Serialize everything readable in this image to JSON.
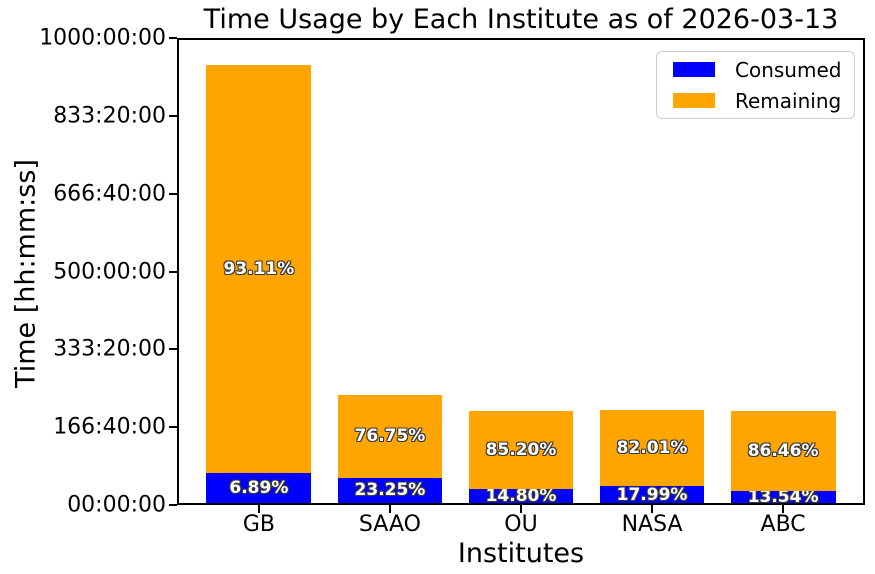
{
  "title": "Time Usage by Each Institute as of 2026-03-13",
  "chart_data": {
    "type": "bar",
    "stacked": true,
    "title": "Time Usage by Each Institute as of 2026-03-13",
    "xlabel": "Institutes",
    "ylabel": "Time [hh:mm:ss]",
    "categories": [
      "GB",
      "SAAO",
      "OU",
      "NASA",
      "ABC"
    ],
    "series": [
      {
        "name": "Consumed",
        "color": "#0000ff",
        "values_hours": [
          64.6,
          53.8,
          29.2,
          35.8,
          26.7
        ],
        "labels": [
          "6.89%",
          "23.25%",
          "14.80%",
          "17.99%",
          "13.54%"
        ]
      },
      {
        "name": "Remaining",
        "color": "#ffa500",
        "values_hours": [
          873.6,
          177.5,
          167.8,
          163.3,
          170.4
        ],
        "labels": [
          "93.11%",
          "76.75%",
          "85.20%",
          "82.01%",
          "86.46%"
        ]
      }
    ],
    "totals_hours": [
      938.2,
      231.3,
      197.0,
      199.1,
      197.1
    ],
    "ylim": [
      0,
      1000
    ],
    "ytick_labels": [
      "00:00:00",
      "166:40:00",
      "333:20:00",
      "500:00:00",
      "666:40:00",
      "833:20:00",
      "1000:00:00"
    ],
    "ytick_hours": [
      0,
      166.6667,
      333.3333,
      500,
      666.6667,
      833.3333,
      1000
    ],
    "grid": false,
    "legend": {
      "position": "upper-right",
      "entries": [
        "Consumed",
        "Remaining"
      ]
    },
    "label_text_color": "#ffffff",
    "label_outline_color": "#3b3b3b"
  }
}
